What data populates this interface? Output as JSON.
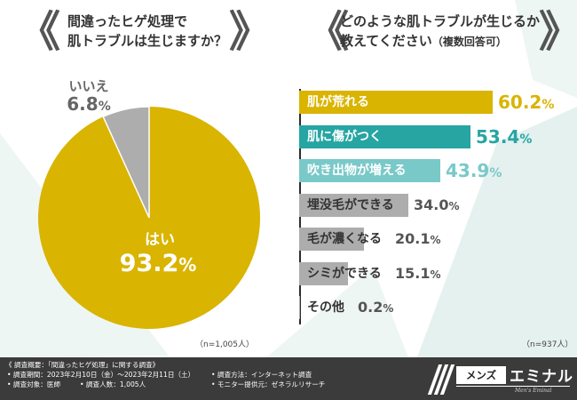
{
  "colors": {
    "gold": "#d9b400",
    "teal_dark": "#26a5a3",
    "teal_light": "#79c9c8",
    "gray": "#adadad",
    "deco": "#e5f1ef",
    "footer_bg": "#3b3b3b"
  },
  "left_question": {
    "bracket_open": "《",
    "bracket_close": "》",
    "line1": "間違ったヒゲ処理で",
    "line2": "肌トラブルは生じますか？"
  },
  "right_question": {
    "bracket_open": "《",
    "bracket_close": "》",
    "line1": "どのような肌トラブルが生じるか",
    "line2_main": "教えてください",
    "line2_note": "（複数回答可）"
  },
  "chart_data": [
    {
      "type": "pie",
      "title": "間違ったヒゲ処理で肌トラブルは生じますか？",
      "slices": [
        {
          "label": "はい",
          "value": 93.2,
          "display": "93.2",
          "unit": "%"
        },
        {
          "label": "いいえ",
          "value": 6.8,
          "display": "6.8",
          "unit": "%"
        }
      ],
      "n_label": "（n=1,005人）"
    },
    {
      "type": "bar",
      "orientation": "horizontal",
      "title": "どのような肌トラブルが生じるか教えてください（複数回答可）",
      "categories": [
        "肌が荒れる",
        "肌に傷がつく",
        "吹き出物が増える",
        "埋没毛ができる",
        "毛が濃くなる",
        "シミができる",
        "その他"
      ],
      "values": [
        60.2,
        53.4,
        43.9,
        34.0,
        20.1,
        15.1,
        0.2
      ],
      "displays": [
        "60.2",
        "53.4",
        "43.9",
        "34.0",
        "20.1",
        "15.1",
        "0.2"
      ],
      "unit": "%",
      "xlim": [
        0,
        100
      ],
      "n_label": "（n=937人）"
    }
  ],
  "footer": {
    "line1": "《 調査概要：「間違ったヒゲ処理」に関する調査》",
    "period": "• 調査期間：2023年2月10日（金）～2023年2月11日（土）",
    "method": "• 調査方法：インターネット調査",
    "target": "• 調査対象：医師",
    "count": "• 調査人数：1,005人",
    "provider": "• モニター提供元：ゼネラルリサーチ"
  },
  "logo": {
    "box_text": "メンズ",
    "main_text": "エミナル",
    "sub_text": "Men's Eminal"
  }
}
